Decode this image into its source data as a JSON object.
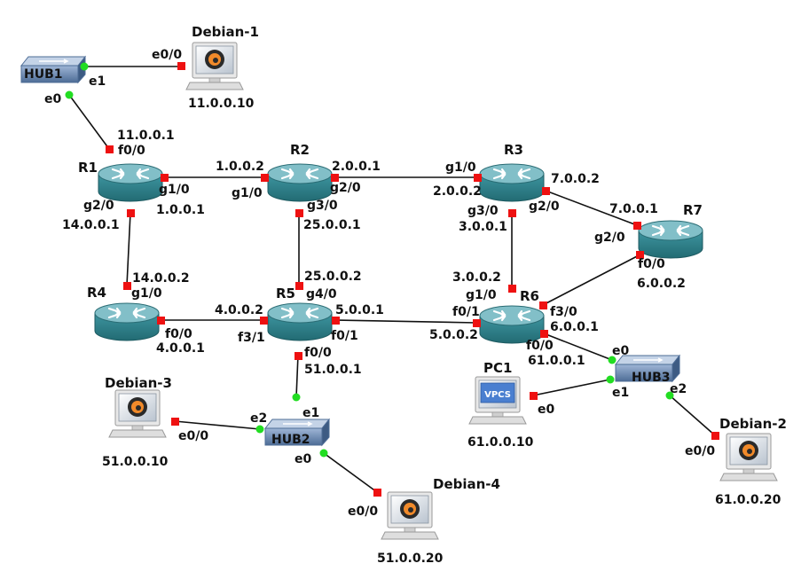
{
  "colors": {
    "link": "#111111",
    "port_down": "#ee1111",
    "port_up": "#22dd22",
    "router_top": "#7fb7c0",
    "router_body": "#2f7f88",
    "hub_body": "#5f7fa6",
    "host_screen_frame": "#d4d4d4"
  },
  "nodes": {
    "hub1": {
      "name": "HUB1"
    },
    "hub2": {
      "name": "HUB2"
    },
    "hub3": {
      "name": "HUB3"
    },
    "debian1": {
      "name": "Debian-1",
      "ip": "11.0.0.10"
    },
    "debian2": {
      "name": "Debian-2",
      "ip": "61.0.0.20"
    },
    "debian3": {
      "name": "Debian-3",
      "ip": "51.0.0.10"
    },
    "debian4": {
      "name": "Debian-4",
      "ip": "51.0.0.20"
    },
    "pc1": {
      "name": "PC1",
      "ip": "61.0.0.10",
      "screen": "VPCS"
    },
    "r1": {
      "name": "R1"
    },
    "r2": {
      "name": "R2"
    },
    "r3": {
      "name": "R3"
    },
    "r4": {
      "name": "R4"
    },
    "r5": {
      "name": "R5"
    },
    "r6": {
      "name": "R6"
    },
    "r7": {
      "name": "R7"
    }
  },
  "labels": {
    "hub1_e1": "e1",
    "deb1_e00": "e0/0",
    "hub1_e0": "e0",
    "r1_ip_top": "11.0.0.1",
    "r1_f00": "f0/0",
    "r1_g10": "g1/0",
    "r1_ip_g10": "1.0.0.1",
    "r1_g20": "g2/0",
    "r1_ip_g20": "14.0.0.1",
    "r2_ip_g10": "1.0.0.2",
    "r2_g10": "g1/0",
    "r2_ip_g20": "2.0.0.1",
    "r2_g20": "g2/0",
    "r2_g30": "g3/0",
    "r2_ip_g30": "25.0.0.1",
    "r3_g10": "g1/0",
    "r3_ip_g10": "2.0.0.2",
    "r3_ip_g20": "7.0.0.2",
    "r3_g20": "g2/0",
    "r3_g30": "g3/0",
    "r3_ip_g30": "3.0.0.1",
    "r7_ip_g20": "7.0.0.1",
    "r7_g20": "g2/0",
    "r7_f00": "f0/0",
    "r7_ip_f00": "6.0.0.2",
    "r4_ip_g10": "14.0.0.2",
    "r4_g10": "g1/0",
    "r4_f00": "f0/0",
    "r4_ip_f00": "4.0.0.1",
    "r5_ip_g40": "25.0.0.2",
    "r5_g40": "g4/0",
    "r5_ip_f31": "4.0.0.2",
    "r5_f31": "f3/1",
    "r5_ip_f01": "5.0.0.1",
    "r5_f01": "f0/1",
    "r5_f00": "f0/0",
    "r5_ip_f00": "51.0.0.1",
    "r6_ip_g10": "3.0.0.2",
    "r6_g10": "g1/0",
    "r6_f01": "f0/1",
    "r6_ip_f01": "5.0.0.2",
    "r6_f30": "f3/0",
    "r6_ip_f30": "6.0.0.1",
    "r6_f00": "f0/0",
    "r6_ip_f00": "61.0.0.1",
    "hub3_e0": "e0",
    "hub3_e1": "e1",
    "hub3_e2": "e2",
    "pc1_e0": "e0",
    "deb2_e00": "e0/0",
    "hub2_e1": "e1",
    "hub2_e2": "e2",
    "hub2_e0": "e0",
    "deb3_e00": "e0/0",
    "deb4_e00": "e0/0"
  }
}
